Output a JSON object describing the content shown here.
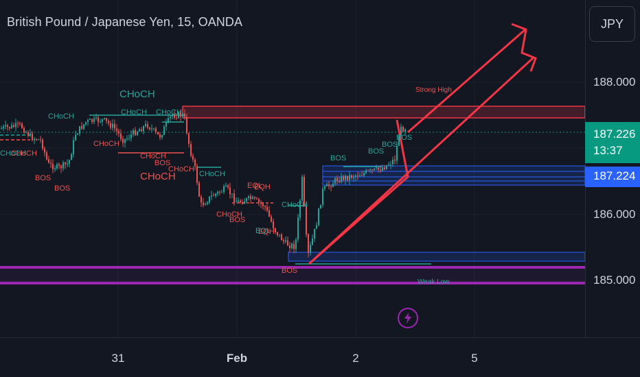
{
  "header": {
    "title": "British Pound / Japanese Yen, 15, OANDA"
  },
  "currency_button": {
    "label": "JPY"
  },
  "price_axis": {
    "labels": [
      "188.000",
      "186.000",
      "185.000"
    ]
  },
  "price_tags": {
    "last_price": "187.226",
    "countdown": "13:37",
    "bid_price": "187.224"
  },
  "time_axis": {
    "labels": [
      "31",
      "Feb",
      "2",
      "5"
    ]
  },
  "annotations": {
    "choch_large_top": "CHoCH",
    "choch_1": "CHoCH",
    "choch_2": "CHoCH",
    "choch_3": "CHoCH",
    "choch_4": "CHoCH",
    "choch_5": "CHoCH",
    "choch_6": "CHoCH",
    "choch_large_red": "CHoCH",
    "choch_7": "CHoCH",
    "choch_8": "CHoCH",
    "choch_9": "CHoCH",
    "choch_10": "CHoCH",
    "eql_1": "EQL",
    "eql_2": "EQL",
    "eqh_1": "EQH",
    "eqh_2": "EQH",
    "bos_1": "BOS",
    "bos_2": "BOS",
    "bos_3": "BOS",
    "bos_4": "BOS",
    "bos_5": "BOS",
    "bos_6": "BOS",
    "bos_7": "BOS",
    "bos_8": "BOS",
    "bos_9": "BOS",
    "strong_high": "Strong High",
    "weak_low": "Weak Low"
  },
  "colors": {
    "background": "#131722",
    "bull": "#26a69a",
    "bear": "#ef5350",
    "arrow": "#f23645",
    "purple": "#9c27b0",
    "zone_blue": "#2962ff",
    "tag_green": "#089981",
    "tag_blue": "#2962ff"
  },
  "icons": {
    "flash": "lightning-icon"
  }
}
